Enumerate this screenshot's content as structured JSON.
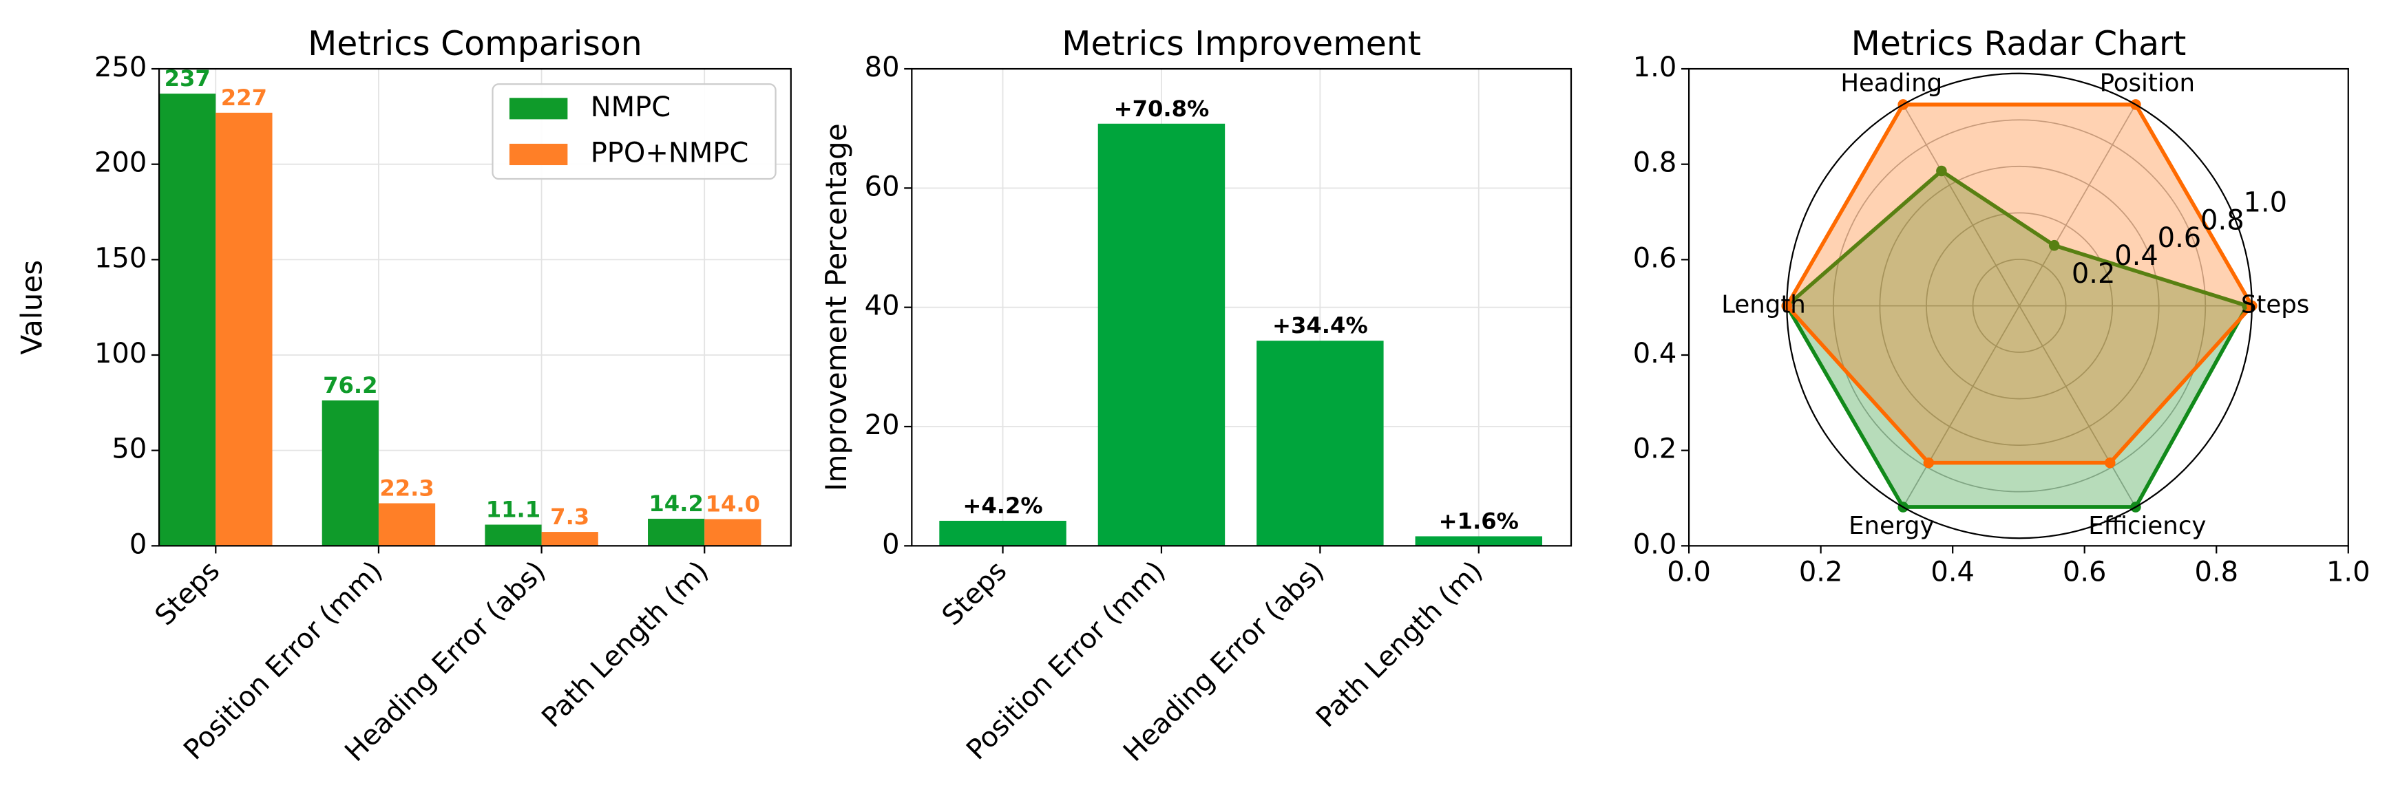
{
  "chart_data": [
    {
      "type": "bar",
      "title": "Metrics Comparison",
      "ylabel": "Values",
      "categories": [
        "Steps",
        "Position Error (mm)",
        "Heading Error (abs)",
        "Path Length (m)"
      ],
      "series": [
        {
          "name": "NMPC",
          "color": "#0f9b2a",
          "values": [
            237,
            76.2,
            11.1,
            14.2
          ]
        },
        {
          "name": "PPO+NMPC",
          "color": "#ff7f27",
          "values": [
            227,
            22.3,
            7.3,
            14.0
          ],
          "value_labels": [
            "227",
            "22.3",
            "7.3",
            "14.0"
          ]
        }
      ],
      "ylim": [
        0,
        250
      ],
      "yticks": [
        0,
        50,
        100,
        150,
        200,
        250
      ],
      "grid": true,
      "legend": "upper right"
    },
    {
      "type": "bar",
      "title": "Metrics Improvement",
      "ylabel": "Improvement Percentage",
      "categories": [
        "Steps",
        "Position Error (mm)",
        "Heading Error (abs)",
        "Path Length (m)"
      ],
      "values": [
        4.2,
        70.8,
        34.4,
        1.6
      ],
      "value_labels": [
        "+4.2%",
        "+70.8%",
        "+34.4%",
        "+1.6%"
      ],
      "color": "#00a53c",
      "ylim": [
        0,
        80
      ],
      "yticks": [
        0,
        20,
        40,
        60,
        80
      ],
      "grid": true
    },
    {
      "type": "radar",
      "title": "Metrics Radar Chart",
      "categories": [
        "Steps",
        "Position",
        "Heading",
        "Length",
        "Energy",
        "Efficiency"
      ],
      "series": [
        {
          "name": "NMPC",
          "color": "#118a1a",
          "values": [
            0.98,
            0.3,
            0.67,
            1.0,
            1.0,
            1.0
          ]
        },
        {
          "name": "PPO+NMPC",
          "color": "#ff6a00",
          "values": [
            1.0,
            1.0,
            1.0,
            1.0,
            0.78,
            0.78
          ]
        }
      ],
      "rlim": [
        0,
        1
      ],
      "rticks": [
        0.2,
        0.4,
        0.6,
        0.8,
        {
          "value": 1,
          "label": "1.0"
        }
      ],
      "xlim": [
        0,
        1
      ],
      "ylim": [
        0,
        1
      ],
      "xticks": [
        {
          "value": 0,
          "label": "0.0"
        },
        0.2,
        0.4,
        0.6,
        0.8,
        {
          "value": 1,
          "label": "1.0"
        }
      ],
      "yticks": [
        {
          "value": 0,
          "label": "0.0"
        },
        0.2,
        0.4,
        0.6,
        0.8,
        {
          "value": 1,
          "label": "1.0"
        }
      ]
    }
  ]
}
